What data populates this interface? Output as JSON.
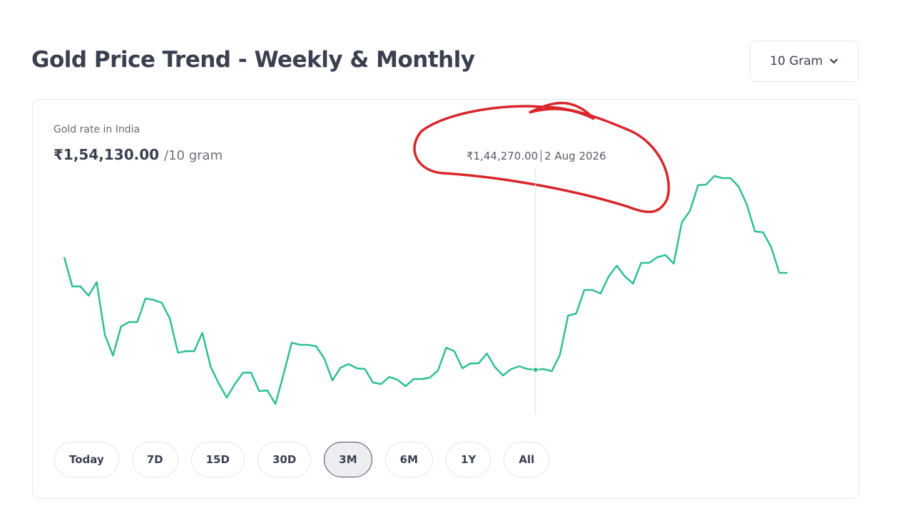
{
  "header": {
    "title": "Gold Price Trend - Weekly & Monthly",
    "unit_selector": "10 Gram"
  },
  "card": {
    "label": "Gold rate in India",
    "current_price": {
      "value": 154130,
      "label": "₹1,54,130.00"
    },
    "unit": "/10 gram"
  },
  "chart_data": {
    "type": "line",
    "color": "#2fbf8f",
    "values": [
      155730,
      152750,
      152750,
      151810,
      153190,
      147820,
      145720,
      148690,
      149130,
      149130,
      151520,
      151380,
      151090,
      149490,
      146010,
      146160,
      146160,
      148040,
      144630,
      142890,
      141440,
      142820,
      143980,
      143980,
      142100,
      142170,
      140790,
      143840,
      147030,
      146810,
      146810,
      146660,
      145430,
      143180,
      144490,
      144850,
      144420,
      144340,
      142970,
      142820,
      143550,
      143260,
      142600,
      143330,
      143330,
      143470,
      144200,
      146520,
      146160,
      144420,
      144920,
      144920,
      145940,
      144560,
      143690,
      144340,
      144630,
      144340,
      144270,
      144340,
      144130,
      145790,
      149780,
      150000,
      152390,
      152390,
      152030,
      153770,
      154860,
      153770,
      153040,
      155150,
      155150,
      155730,
      155940,
      155070,
      159280,
      160440,
      163050,
      163120,
      163990,
      163770,
      163770,
      162900,
      161090,
      158340,
      158260,
      156740,
      154130,
      154130
    ],
    "tooltip": {
      "value": 144270,
      "label": "₹1,44,270.00",
      "date": "2 Aug 2026"
    }
  },
  "ranges": [
    "Today",
    "7D",
    "15D",
    "30D",
    "3M",
    "6M",
    "1Y",
    "All"
  ],
  "selected_range": "3M"
}
